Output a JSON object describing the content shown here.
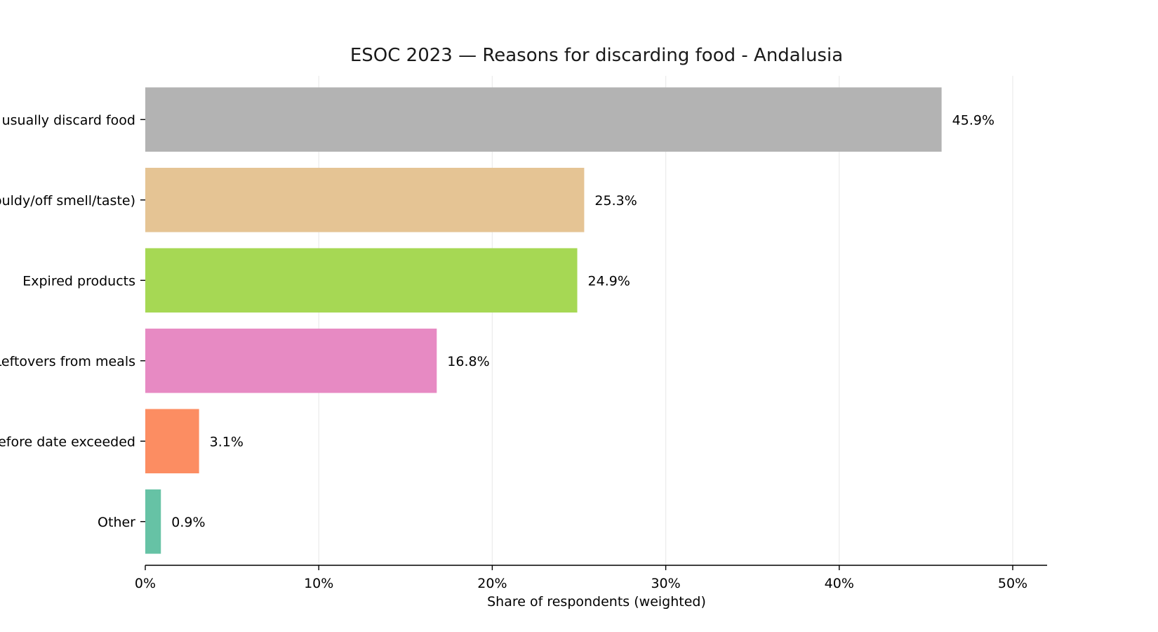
{
  "chart_data": {
    "type": "bar",
    "orientation": "horizontal",
    "title": "ESOC 2023 — Reasons for discarding food - Andalusia",
    "xlabel": "Share of respondents (weighted)",
    "ylabel": "",
    "xlim": [
      0,
      52
    ],
    "x_ticks": [
      0,
      10,
      20,
      30,
      40,
      50
    ],
    "x_tick_labels": [
      "0%",
      "10%",
      "20%",
      "30%",
      "40%",
      "50%"
    ],
    "grid": "vertical lines",
    "bars": [
      {
        "label": "I don't usually discard food",
        "value": 45.9,
        "value_label": "45.9%",
        "color": "#b3b3b3"
      },
      {
        "label": "Spoiled food (mouldy/off smell/taste)",
        "value": 25.3,
        "value_label": "25.3%",
        "color": "#e5c494"
      },
      {
        "label": "Expired products",
        "value": 24.9,
        "value_label": "24.9%",
        "color": "#a6d854"
      },
      {
        "label": "Leftovers from meals",
        "value": 16.8,
        "value_label": "16.8%",
        "color": "#e78ac3"
      },
      {
        "label": "Best-before date exceeded",
        "value": 3.1,
        "value_label": "3.1%",
        "color": "#fc8d62"
      },
      {
        "label": "Other",
        "value": 0.9,
        "value_label": "0.9%",
        "color": "#66c2a5"
      }
    ]
  }
}
